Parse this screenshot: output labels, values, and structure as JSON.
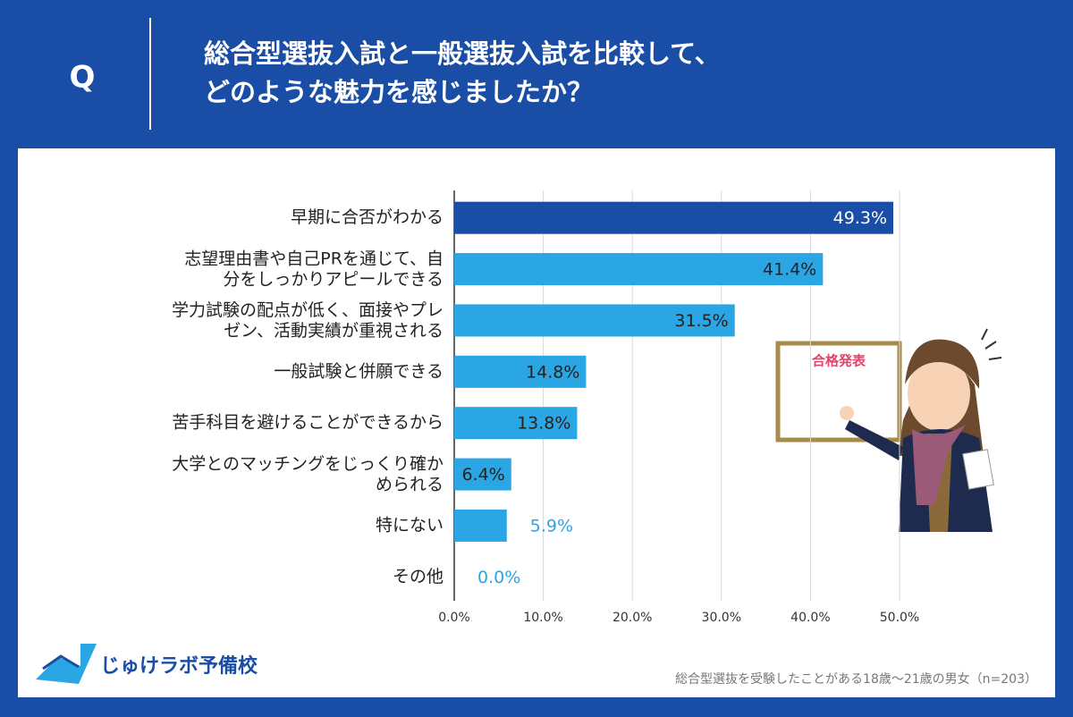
{
  "header": {
    "q": "Q",
    "title": "総合型選抜入試と一般選抜入試を比較して、\nどのような魅力を感じましたか？"
  },
  "chart_data": {
    "type": "bar",
    "orientation": "horizontal",
    "categories": [
      "早期に合否がわかる",
      "志望理由書や自己PRを通じて、自\n分をしっかりアピールできる",
      "学力試験の配点が低く、面接やプレ\nゼン、活動実績が重視される",
      "一般試験と併願できる",
      "苦手科目を避けることができるから",
      "大学とのマッチングをじっくり確か\nめられる",
      "特にない",
      "その他"
    ],
    "values": [
      49.3,
      41.4,
      31.5,
      14.8,
      13.8,
      6.4,
      5.9,
      0.0
    ],
    "value_labels": [
      "49.3%",
      "41.4%",
      "31.5%",
      "14.8%",
      "13.8%",
      "6.4%",
      "5.9%",
      "0.0%"
    ],
    "colors": [
      "#1a4da6",
      "#2ba6e4",
      "#2ba6e4",
      "#2ba6e4",
      "#2ba6e4",
      "#2ba6e4",
      "#2ba6e4",
      "#2ba6e4"
    ],
    "xlim": [
      0,
      50
    ],
    "xticks": [
      {
        "value": 0,
        "label": "0.0%"
      },
      {
        "value": 10,
        "label": "10.0%"
      },
      {
        "value": 20,
        "label": "20.0%"
      },
      {
        "value": 30,
        "label": "30.0%"
      },
      {
        "value": 40,
        "label": "40.0%"
      },
      {
        "value": 50,
        "label": "50.0%"
      }
    ],
    "grid": true
  },
  "illustration": {
    "board_text": "合格発表"
  },
  "footer": {
    "logo": "じゅけラボ予備校",
    "note": "総合型選抜を受験したことがある18歳～21歳の男女（n=203）"
  }
}
